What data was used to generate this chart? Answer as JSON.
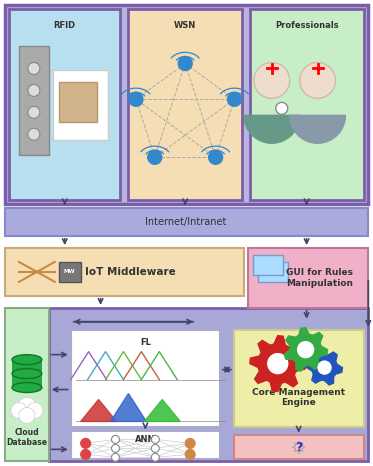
{
  "fig_width": 3.73,
  "fig_height": 4.66,
  "bg_color": "#ffffff",
  "purple_border": "#7B5EA7",
  "light_purple_bg": "#B8B4E0",
  "light_blue_box": "#B8DFF0",
  "peach_box": "#F5DEB3",
  "light_green_box": "#C8EEC8",
  "pink_box": "#F5C0C0",
  "yellow_box": "#EEEEA0",
  "white_box": "#FFFFFF",
  "arrow_color": "#444466",
  "title_rfid": "RFID",
  "title_wsn": "WSN",
  "title_professionals": "Professionals",
  "title_internet": "Internet/Intranet",
  "title_middleware": "IoT Middleware",
  "title_gui": "GUI for Rules\nManipulation",
  "title_fl": "FL",
  "title_ann": "ANN",
  "title_core": "Core Management\nEngine",
  "title_cloud": "Cloud\nDatabase",
  "internet_bar_color": "#AAAADD",
  "middleware_bg": "#F5DEB3",
  "gui_bg": "#F0B0C8",
  "main_container_bg": "#A8A8D8",
  "cloud_bg": "#C8EEC8",
  "fl_box_bg": "#FFFFFF",
  "ann_box_bg": "#FFFFFF",
  "core_box_bg": "#EEEEA8",
  "decision_box_bg": "#F5C0C0"
}
